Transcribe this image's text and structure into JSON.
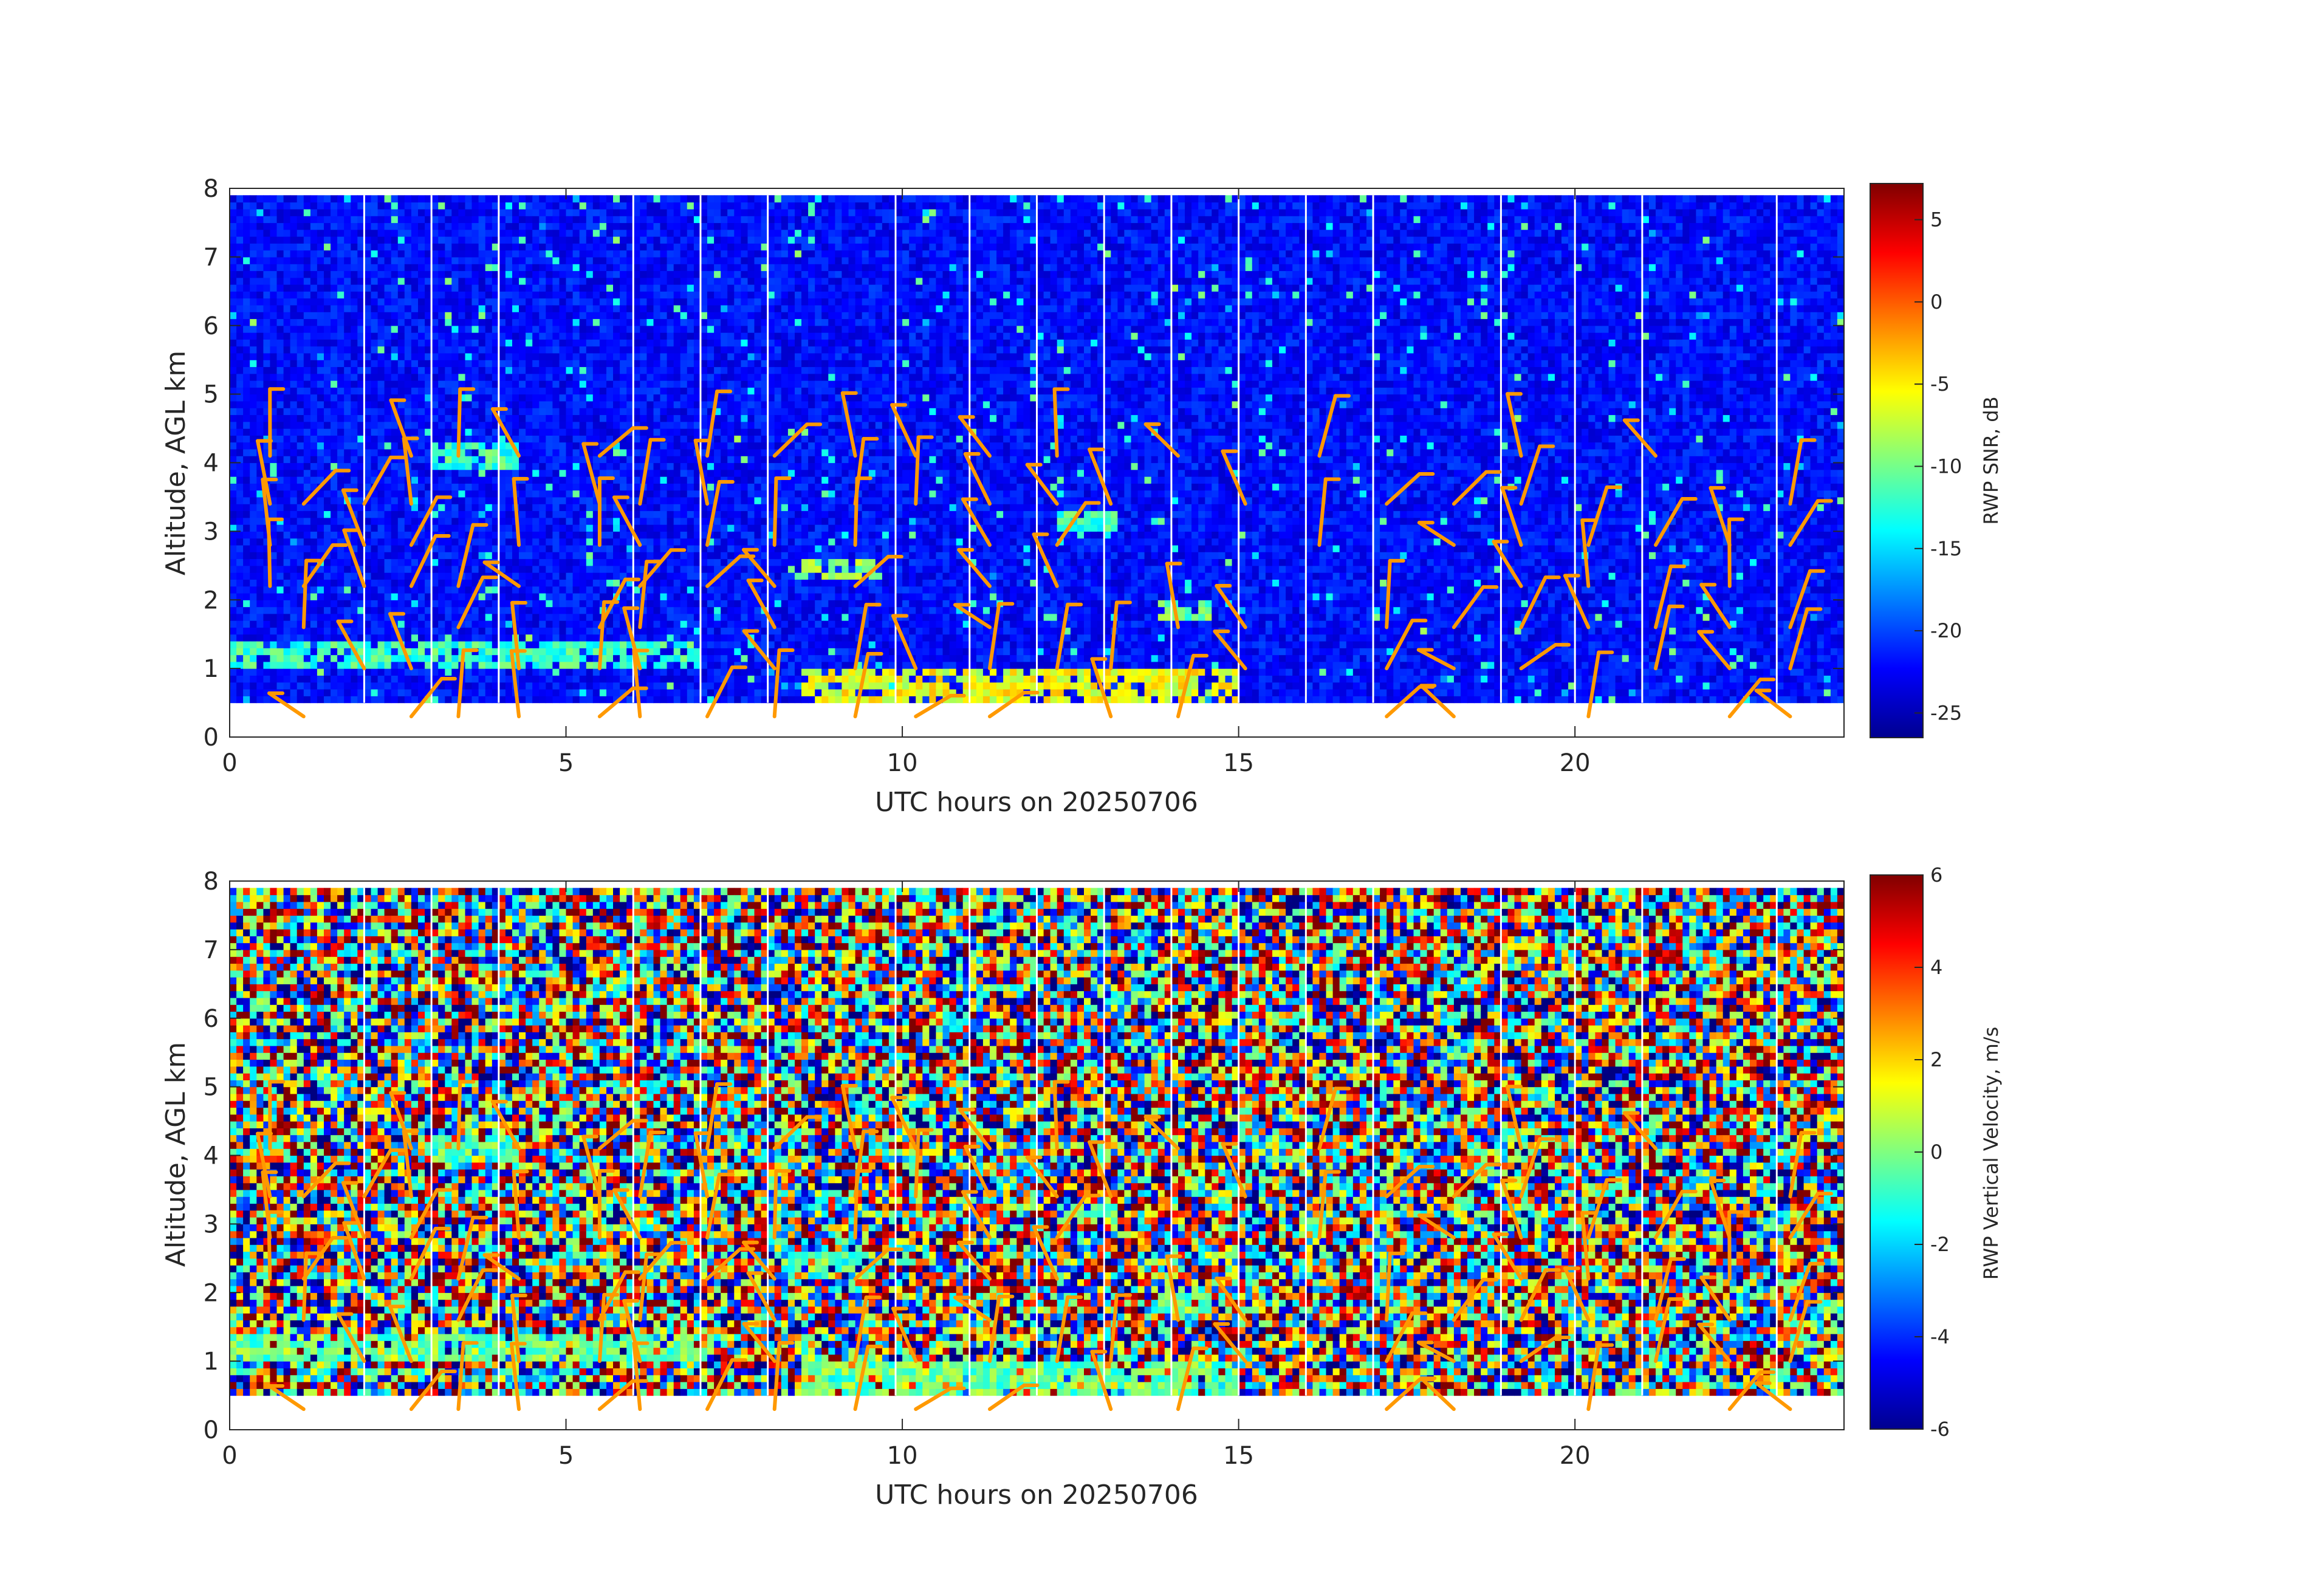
{
  "chart_data": [
    {
      "type": "heatmap",
      "name": "snr-panel",
      "xlabel": "UTC hours on 20250706",
      "ylabel": "Altitude, AGL km",
      "xlim": [
        0,
        24
      ],
      "ylim": [
        0,
        8
      ],
      "xticks": [
        0,
        5,
        10,
        15,
        20
      ],
      "yticks": [
        0,
        1,
        2,
        3,
        4,
        5,
        6,
        7,
        8
      ],
      "data_altitude_range_km": [
        0.5,
        7.9
      ],
      "gap_hours": [
        2,
        3,
        4,
        6,
        7,
        8,
        9.9,
        11,
        12,
        13,
        14,
        15,
        16,
        17,
        18.9,
        20,
        21,
        23
      ],
      "colorbar": {
        "label": "RWP SNR, dB",
        "clim": [
          -26.5,
          7.2
        ],
        "ticks": [
          5,
          0,
          -5,
          -10,
          -15,
          -20,
          -25
        ],
        "colormap": "jet"
      },
      "features": [
        {
          "desc": "elevated echo layer",
          "x": [
            3.0,
            4.3
          ],
          "y": [
            3.9,
            4.3
          ],
          "level": -12
        },
        {
          "desc": "layer",
          "x": [
            8.3,
            9.6
          ],
          "y": [
            2.3,
            2.6
          ],
          "level": -9
        },
        {
          "desc": "layer",
          "x": [
            12.3,
            13.2
          ],
          "y": [
            3.0,
            3.3
          ],
          "level": -12
        },
        {
          "desc": "layer",
          "x": [
            13.8,
            14.6
          ],
          "y": [
            1.7,
            2.0
          ],
          "level": -10
        },
        {
          "desc": "boundary layer",
          "x": [
            0,
            7
          ],
          "y": [
            1.0,
            1.4
          ],
          "level": -12
        },
        {
          "desc": "near-surface returns",
          "x": [
            8.5,
            15
          ],
          "y": [
            0.5,
            1.0
          ],
          "level": -6
        }
      ]
    },
    {
      "type": "heatmap",
      "name": "vertical-velocity-panel",
      "xlabel": "UTC hours on 20250706",
      "ylabel": "Altitude, AGL km",
      "xlim": [
        0,
        24
      ],
      "ylim": [
        0,
        8
      ],
      "xticks": [
        0,
        5,
        10,
        15,
        20
      ],
      "yticks": [
        0,
        1,
        2,
        3,
        4,
        5,
        6,
        7,
        8
      ],
      "data_altitude_range_km": [
        0.5,
        7.9
      ],
      "colorbar": {
        "label": "RWP Vertical Velocity, m/s",
        "clim": [
          -6,
          6
        ],
        "ticks": [
          6,
          4,
          2,
          0,
          -2,
          -4,
          -6
        ],
        "colormap": "jet"
      }
    }
  ],
  "wind_barbs": {
    "color": "#ff9900",
    "hours": [
      0.6,
      1.1,
      2.0,
      2.7,
      3.4,
      4.3,
      5.5,
      6.1,
      7.1,
      8.1,
      9.3,
      10.2,
      11.3,
      12.3,
      13.1,
      14.1,
      15.1,
      16.2,
      17.2,
      18.2,
      19.2,
      20.2,
      21.2,
      22.3,
      23.2
    ],
    "altitudes_km": [
      0.1,
      0.8,
      1.4,
      2.0,
      2.6,
      3.2,
      3.9
    ]
  }
}
